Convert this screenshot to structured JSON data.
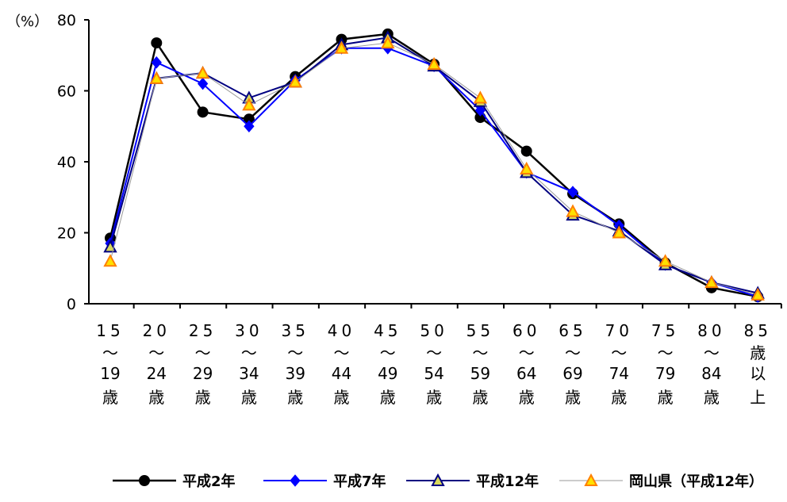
{
  "chart_data": {
    "type": "line",
    "ylabel": "（%）",
    "ylim": [
      0,
      80
    ],
    "yticks": [
      "0",
      "20",
      "40",
      "60",
      "80"
    ],
    "grid": false,
    "legend_position": "bottom",
    "categories": [
      [
        "15",
        "～",
        "19",
        "歳"
      ],
      [
        "20",
        "～",
        "24",
        "歳"
      ],
      [
        "25",
        "～",
        "29",
        "歳"
      ],
      [
        "30",
        "～",
        "34",
        "歳"
      ],
      [
        "35",
        "～",
        "39",
        "歳"
      ],
      [
        "40",
        "～",
        "44",
        "歳"
      ],
      [
        "45",
        "～",
        "49",
        "歳"
      ],
      [
        "50",
        "～",
        "54",
        "歳"
      ],
      [
        "55",
        "～",
        "59",
        "歳"
      ],
      [
        "60",
        "～",
        "64",
        "歳"
      ],
      [
        "65",
        "～",
        "69",
        "歳"
      ],
      [
        "70",
        "～",
        "74",
        "歳"
      ],
      [
        "75",
        "～",
        "79",
        "歳"
      ],
      [
        "80",
        "～",
        "84",
        "歳"
      ],
      [
        "85",
        "歳",
        "以",
        "上"
      ]
    ],
    "series": [
      {
        "name": "平成2年",
        "color": "#000000",
        "marker": "circle",
        "values": [
          18.5,
          73.5,
          54,
          52,
          64,
          74.5,
          76,
          67.5,
          52.5,
          43,
          31,
          22.5,
          11.5,
          4.5,
          2
        ]
      },
      {
        "name": "平成7年",
        "color": "#0000ff",
        "marker": "diamond",
        "values": [
          17,
          68,
          62,
          50,
          63,
          72,
          72,
          67,
          54.5,
          37,
          31.5,
          22,
          11,
          6,
          2
        ]
      },
      {
        "name": "平成12年",
        "color": "#000080",
        "marker": "triangle",
        "values": [
          16,
          63.5,
          65,
          58,
          62.5,
          73,
          75,
          67,
          57,
          37,
          25,
          20.5,
          11,
          6,
          3
        ]
      },
      {
        "name": "岡山県（平成12年）",
        "color": "#999999",
        "marker": "triangle-orange",
        "values": [
          12,
          63.5,
          65,
          56,
          62.5,
          72,
          73.5,
          67.5,
          58,
          38,
          26,
          20,
          12,
          6,
          2.5
        ]
      }
    ]
  }
}
